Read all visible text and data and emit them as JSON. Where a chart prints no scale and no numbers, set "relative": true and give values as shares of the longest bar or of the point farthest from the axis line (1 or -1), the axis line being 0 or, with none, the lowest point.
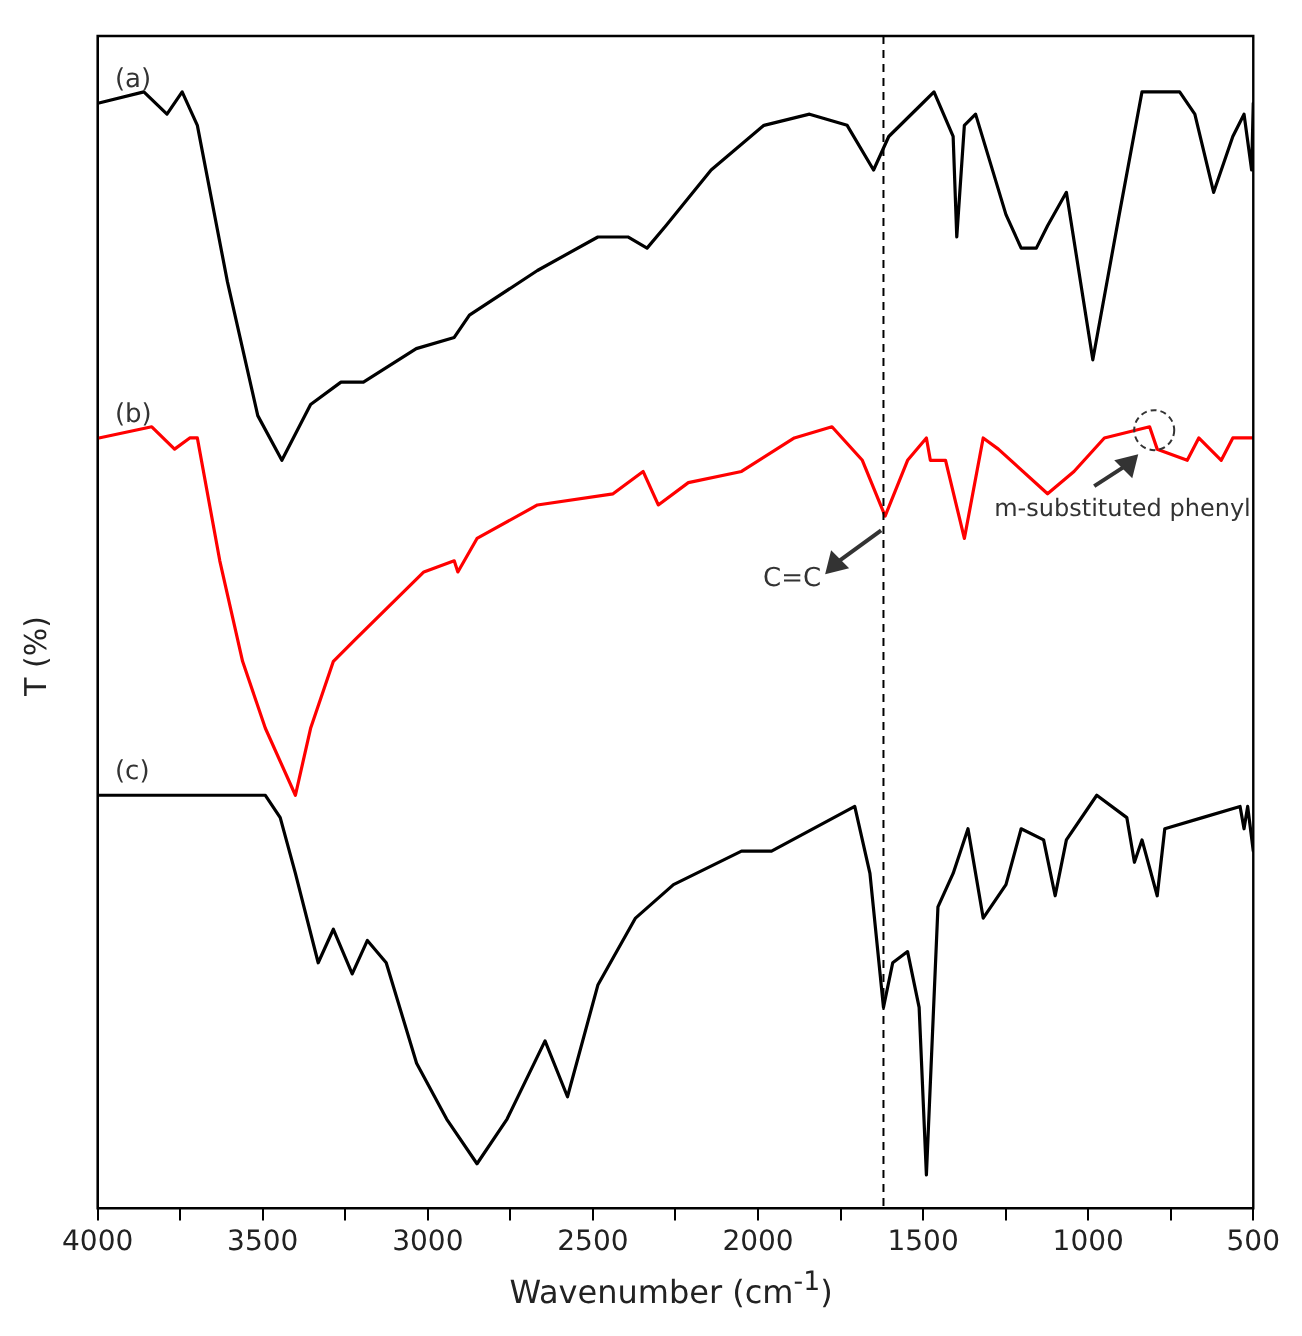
{
  "chart_data": {
    "type": "line",
    "relative": true,
    "xlabel": "Wavenumber (cm$^{-1}$)",
    "ylabel": "T (%)",
    "xlim": [
      4000,
      500
    ],
    "xticks": [
      4000,
      {
        "value": 3750,
        "label": null
      },
      3500,
      {
        "value": 3250,
        "label": null
      },
      3000,
      {
        "value": 2750,
        "label": null
      },
      2500,
      {
        "value": 2250,
        "label": null
      },
      2000,
      {
        "value": 1750,
        "label": null
      },
      1500,
      {
        "value": 1250,
        "label": null
      },
      1000,
      {
        "value": 750,
        "label": null
      },
      500
    ],
    "legend": false,
    "grid": false,
    "marker": "none",
    "line_style": "solid",
    "tick_labels": "x",
    "ref_lines": [
      {
        "axis": "x",
        "value": 1620,
        "color": "#000000",
        "line_style": "dashed"
      }
    ],
    "annotations": [
      {
        "text": "C=C",
        "x": 1615,
        "y": 0.618
      },
      {
        "text": "m-substituted phenyl",
        "x": 800,
        "y": 0.697
      }
    ],
    "series": [
      {
        "name": "(a)",
        "color": "#000000",
        "x": [
          3996,
          3860,
          3790,
          3744,
          3698,
          3607,
          3515,
          3442,
          3355,
          3263,
          3195,
          3035,
          2920,
          2874,
          2668,
          2485,
          2394,
          2336,
          2279,
          2142,
          1982,
          1844,
          1730,
          1650,
          1604,
          1501,
          1467,
          1409,
          1398,
          1375,
          1341,
          1249,
          1203,
          1157,
          1123,
          1066,
          986,
          906,
          837,
          723,
          677,
          620,
          562,
          528,
          505,
          500
        ],
        "values": [
          0.99,
          1.0,
          0.98,
          1.0,
          0.97,
          0.83,
          0.71,
          0.67,
          0.72,
          0.74,
          0.74,
          0.77,
          0.78,
          0.8,
          0.84,
          0.87,
          0.87,
          0.86,
          0.88,
          0.93,
          0.97,
          0.98,
          0.97,
          0.93,
          0.96,
          0.99,
          1.0,
          0.96,
          0.87,
          0.97,
          0.98,
          0.89,
          0.86,
          0.86,
          0.88,
          0.91,
          0.76,
          0.89,
          1.0,
          1.0,
          0.98,
          0.91,
          0.96,
          0.98,
          0.93,
          0.99
        ]
      },
      {
        "name": "(b)",
        "color": "#ff0000",
        "x": [
          3996,
          3836,
          3767,
          3721,
          3698,
          3630,
          3561,
          3492,
          3401,
          3355,
          3286,
          3218,
          3012,
          2920,
          2909,
          2851,
          2668,
          2439,
          2348,
          2302,
          2211,
          2050,
          1890,
          1776,
          1684,
          1615,
          1547,
          1490,
          1478,
          1432,
          1375,
          1318,
          1272,
          1123,
          1043,
          951,
          814,
          791,
          700,
          665,
          597,
          562,
          500
        ],
        "values": [
          0.69,
          0.7,
          0.68,
          0.69,
          0.69,
          0.58,
          0.49,
          0.43,
          0.37,
          0.43,
          0.49,
          0.51,
          0.57,
          0.58,
          0.57,
          0.6,
          0.63,
          0.64,
          0.66,
          0.63,
          0.65,
          0.66,
          0.69,
          0.7,
          0.67,
          0.62,
          0.67,
          0.69,
          0.67,
          0.67,
          0.6,
          0.69,
          0.68,
          0.64,
          0.66,
          0.69,
          0.7,
          0.68,
          0.67,
          0.69,
          0.67,
          0.69,
          0.69
        ]
      },
      {
        "name": "(c)",
        "color": "#000000",
        "x": [
          3996,
          3492,
          3447,
          3401,
          3332,
          3286,
          3229,
          3183,
          3126,
          3034,
          2943,
          2851,
          2760,
          2645,
          2577,
          2485,
          2371,
          2256,
          2050,
          1959,
          1707,
          1661,
          1620,
          1592,
          1547,
          1512,
          1490,
          1455,
          1409,
          1364,
          1318,
          1249,
          1203,
          1135,
          1100,
          1066,
          974,
          883,
          860,
          837,
          791,
          768,
          654,
          540,
          528,
          517,
          500
        ],
        "values": [
          0.37,
          0.37,
          0.35,
          0.3,
          0.22,
          0.25,
          0.21,
          0.24,
          0.22,
          0.13,
          0.08,
          0.04,
          0.08,
          0.15,
          0.1,
          0.2,
          0.26,
          0.29,
          0.32,
          0.32,
          0.36,
          0.3,
          0.18,
          0.22,
          0.23,
          0.18,
          0.03,
          0.27,
          0.3,
          0.34,
          0.26,
          0.29,
          0.34,
          0.33,
          0.28,
          0.33,
          0.37,
          0.35,
          0.31,
          0.33,
          0.28,
          0.34,
          0.35,
          0.36,
          0.34,
          0.36,
          0.32
        ]
      }
    ]
  }
}
